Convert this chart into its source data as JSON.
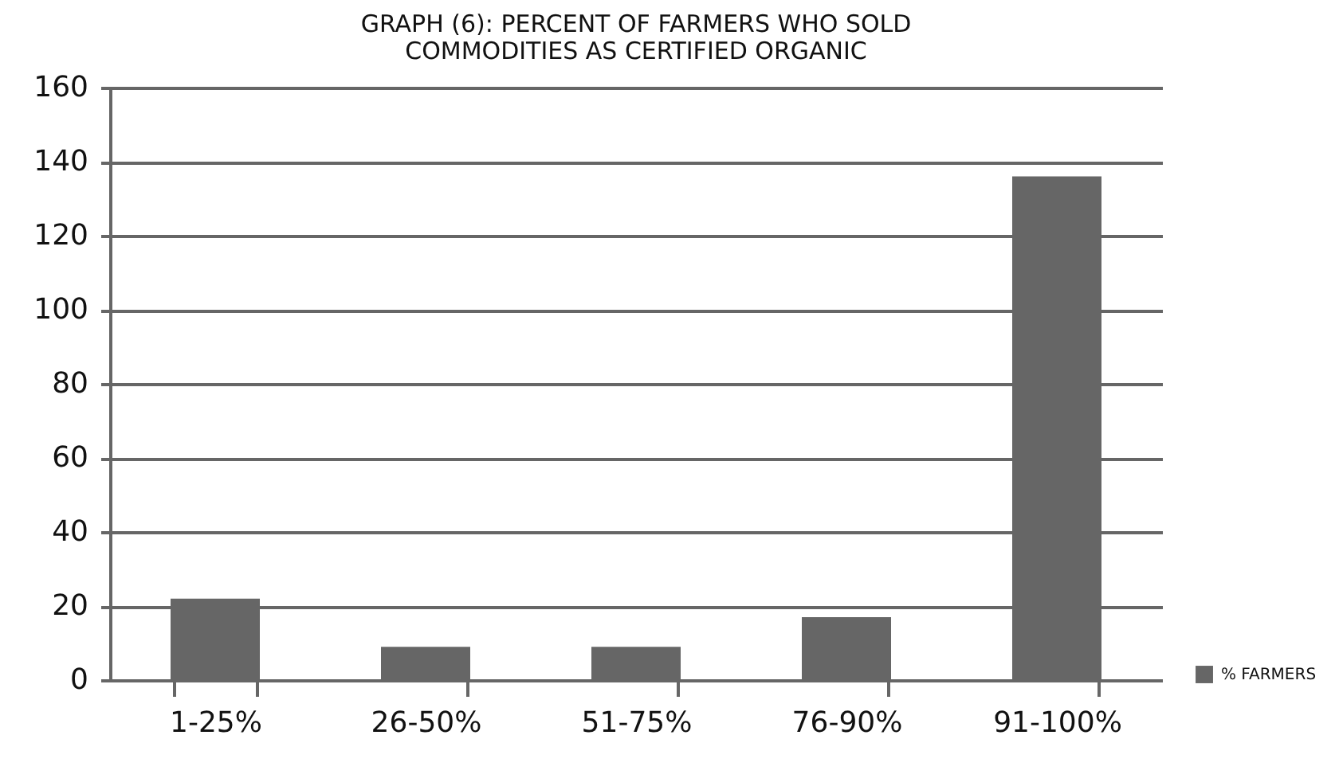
{
  "chart_data": {
    "type": "bar",
    "title": "GRAPH (6): PERCENT OF FARMERS WHO SOLD COMMODITIES AS CERTIFIED ORGANIC",
    "categories": [
      "1-25%",
      "26-50%",
      "51-75%",
      "76-90%",
      "91-100%"
    ],
    "series": [
      {
        "name": "% FARMERS",
        "color": "#666666",
        "values": [
          22,
          9,
          9,
          17,
          136
        ]
      }
    ],
    "ylim": [
      0,
      160
    ],
    "yticks": [
      0,
      20,
      40,
      60,
      80,
      100,
      120,
      140,
      160
    ],
    "grid": "y",
    "legend": "bottom right"
  }
}
